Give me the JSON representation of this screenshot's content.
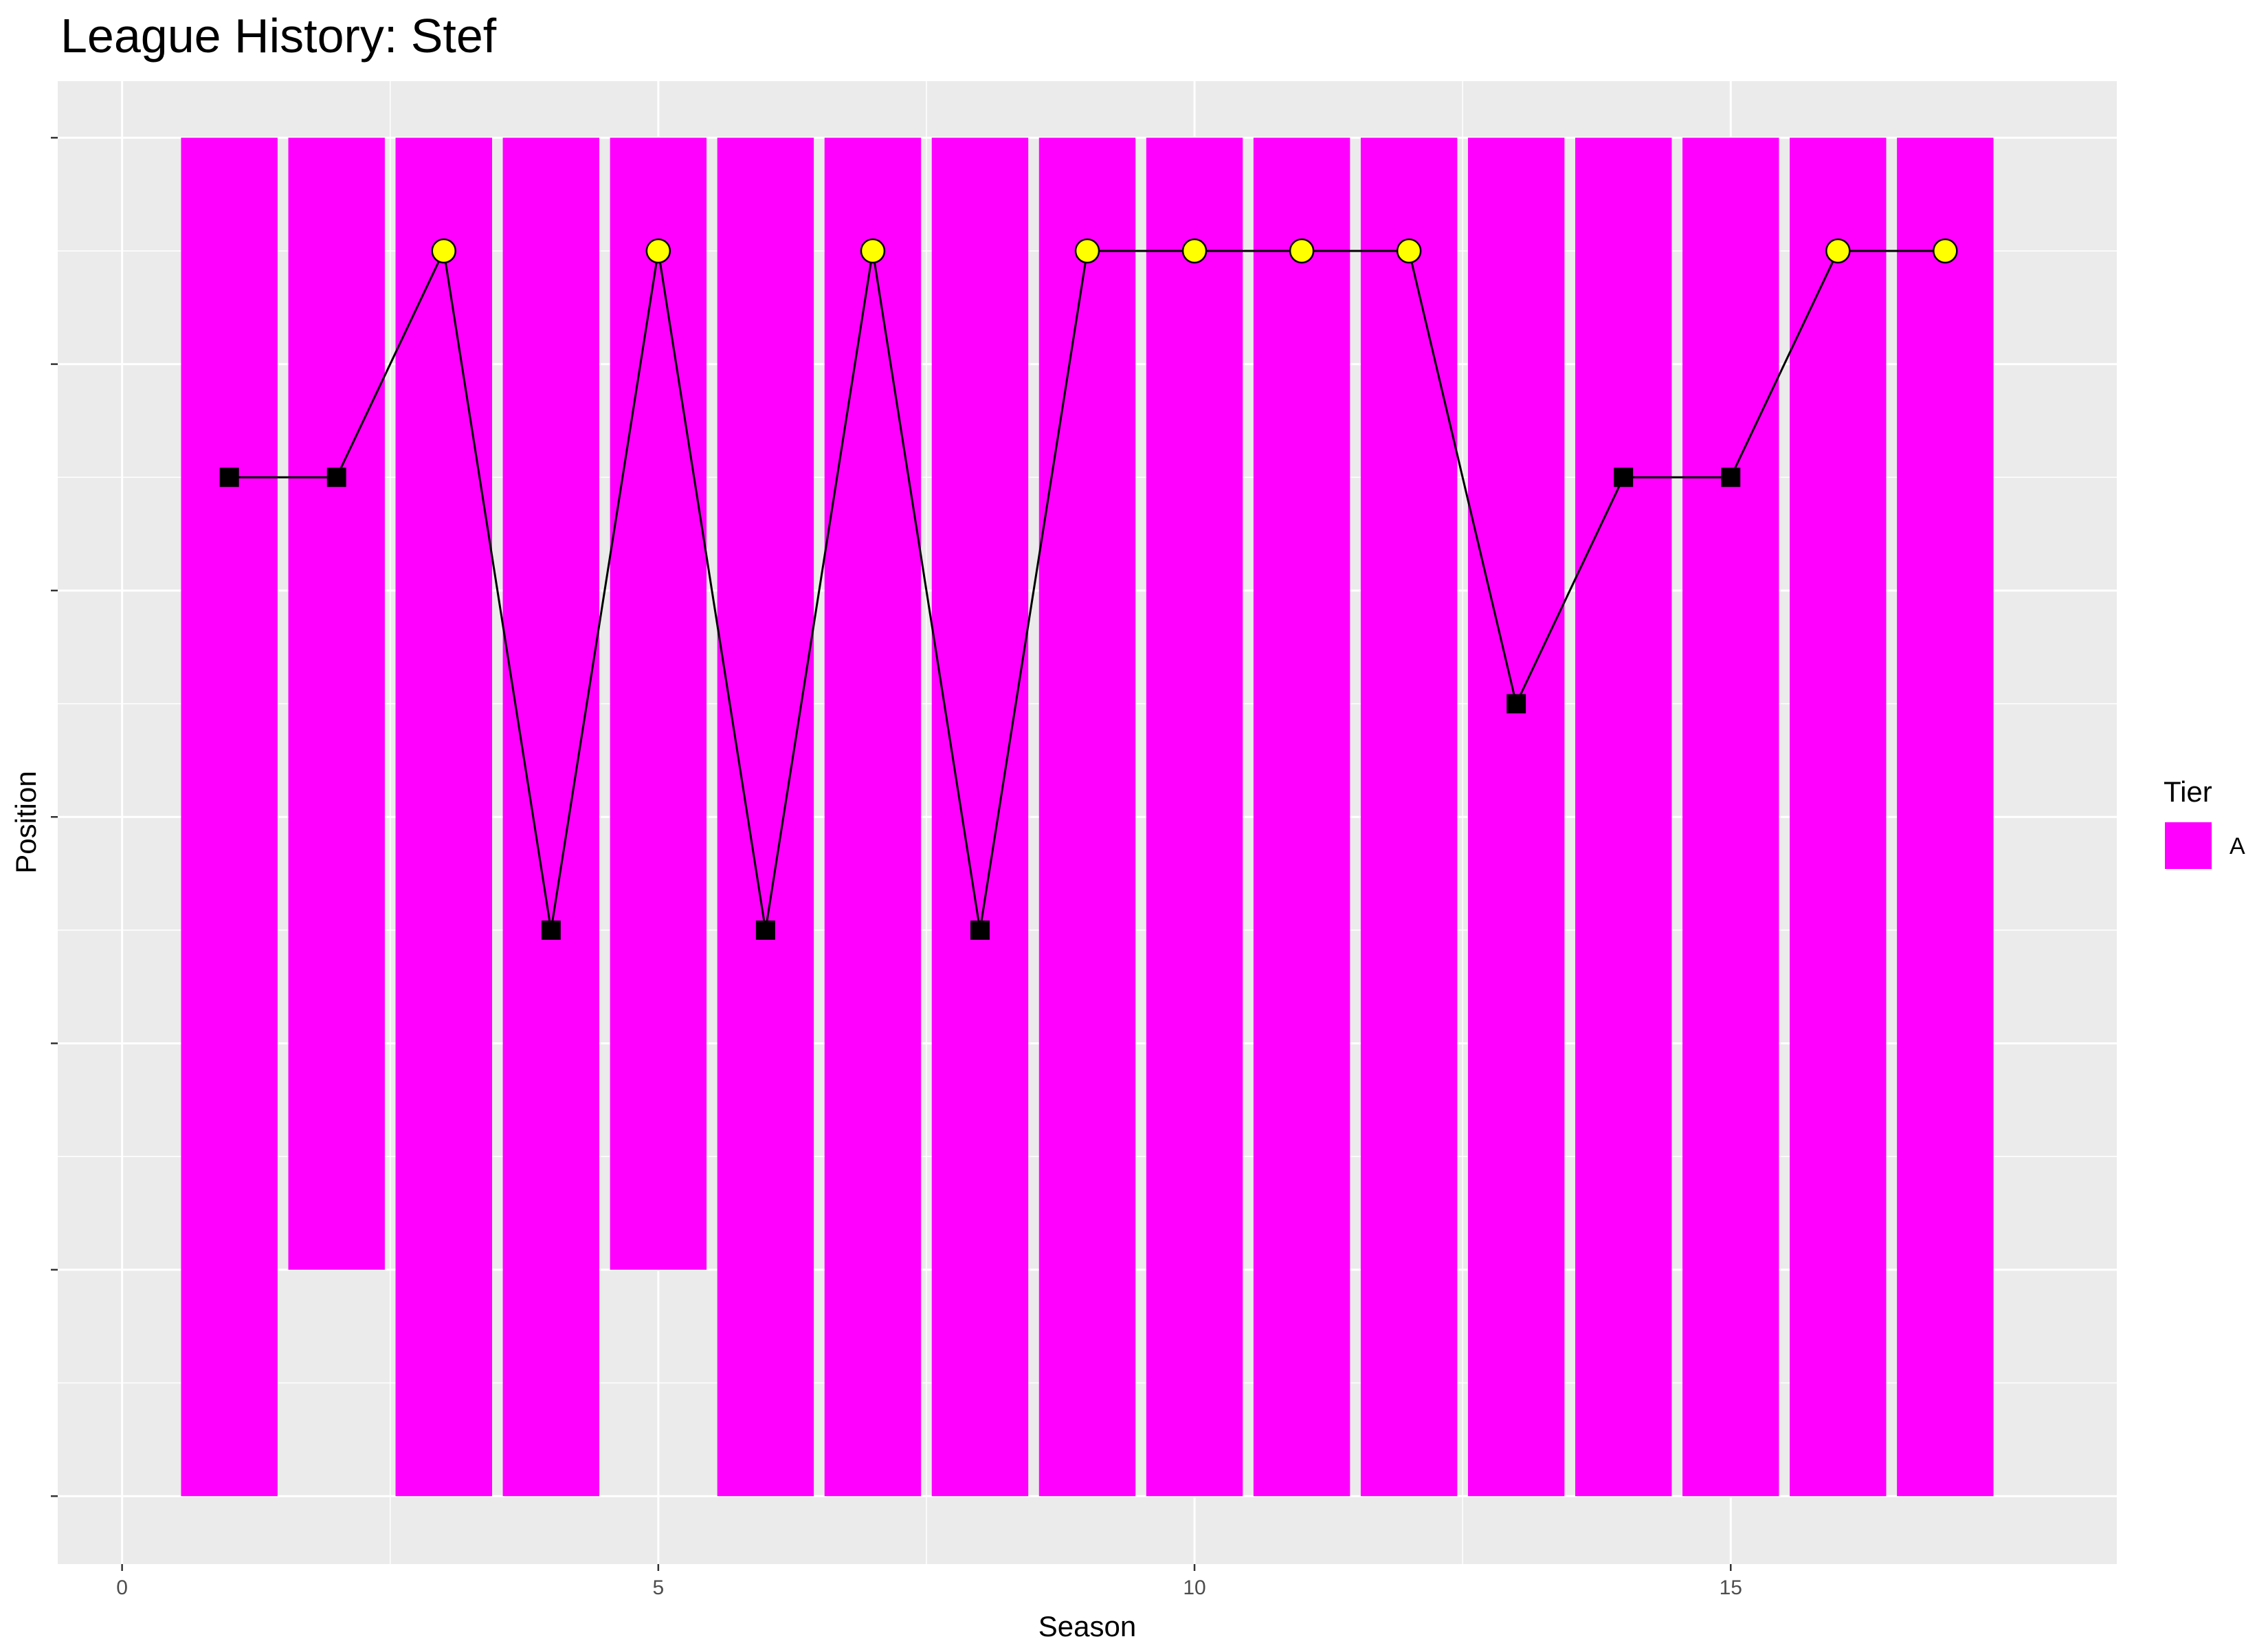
{
  "chart_data": {
    "type": "bar",
    "title": "League History: Stef",
    "xlabel": "Season",
    "ylabel": "Position",
    "xlim": [
      -0.6,
      18.6
    ],
    "ylim": [
      0.5,
      13.6
    ],
    "y_reversed": true,
    "x_ticks": [
      0,
      5,
      10,
      15
    ],
    "x_tick_labels": [
      "0",
      "5",
      "10",
      "15"
    ],
    "y_ticks": [
      1,
      3,
      5,
      7,
      9,
      11,
      13
    ],
    "grid": true,
    "bars": {
      "seasons": [
        1,
        2,
        3,
        4,
        5,
        6,
        7,
        8,
        9,
        10,
        11,
        12,
        13,
        14,
        15,
        16,
        17
      ],
      "league_size": [
        13,
        11,
        13,
        13,
        11,
        13,
        13,
        13,
        13,
        13,
        13,
        13,
        13,
        13,
        13,
        13,
        13
      ],
      "tier": "A",
      "color": "#ff00ff"
    },
    "series": [
      {
        "seasons": [
          1,
          2,
          3,
          4,
          5,
          6,
          7,
          8,
          9,
          10,
          11,
          12,
          13,
          14,
          15,
          16,
          17
        ],
        "positions": [
          4,
          4,
          2,
          8,
          2,
          8,
          2,
          8,
          2,
          2,
          2,
          2,
          6,
          4,
          4,
          2,
          2
        ],
        "marker": [
          "square",
          "square",
          "circle",
          "square",
          "circle",
          "square",
          "circle",
          "square",
          "circle",
          "circle",
          "circle",
          "circle",
          "square",
          "square",
          "square",
          "circle",
          "circle"
        ]
      }
    ],
    "marker_colors": {
      "circle": "#ffff00",
      "square": "#000000"
    },
    "legend": {
      "title": "Tier",
      "placement": "right",
      "entries": [
        {
          "label": "A",
          "color": "#ff00ff"
        }
      ]
    },
    "panel_background": "#ebebeb",
    "grid_color": "#ffffff"
  }
}
